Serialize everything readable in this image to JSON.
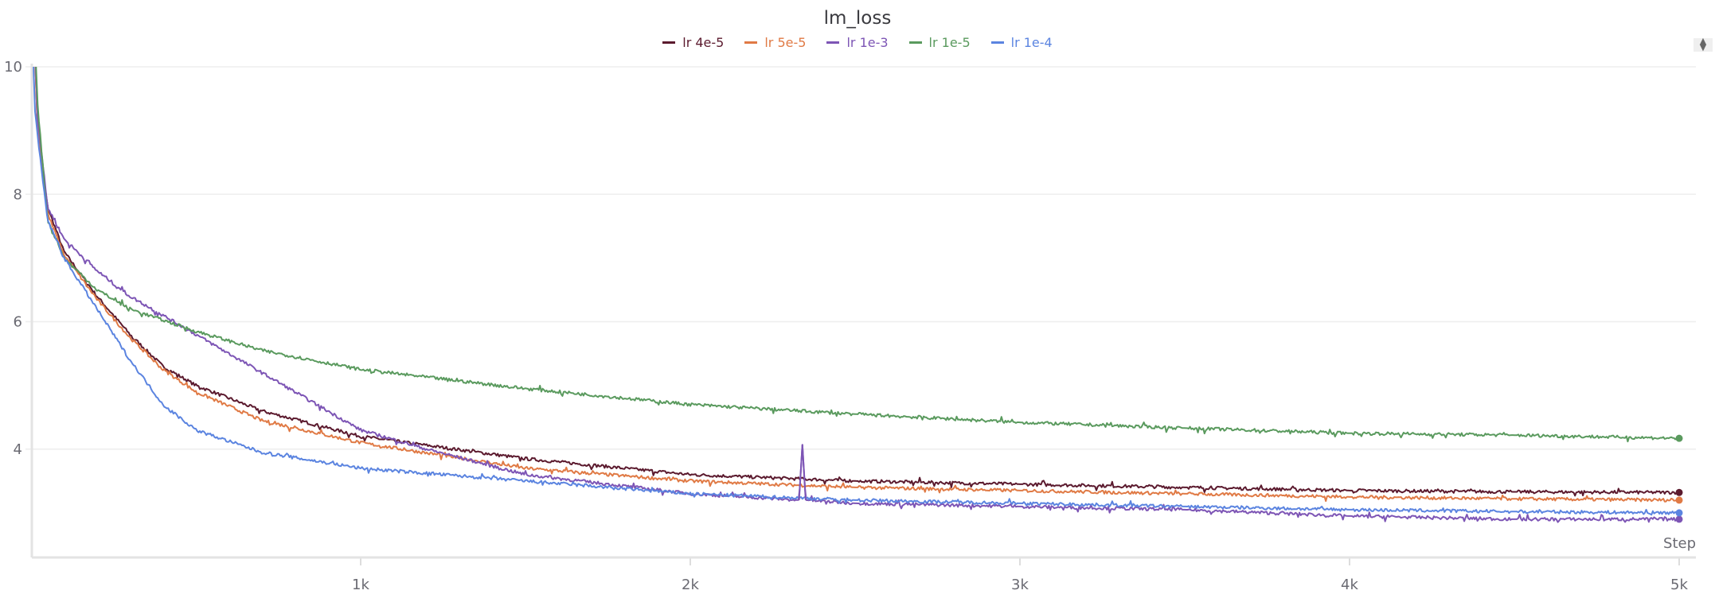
{
  "chart_data": {
    "type": "line",
    "title": "lm_loss",
    "xlabel": "Step",
    "ylabel": "",
    "xlim": [
      0,
      5000
    ],
    "ylim": [
      2.3,
      10
    ],
    "grid": true,
    "legend_placement": "top",
    "x_ticks": [
      {
        "value": 1000,
        "label": "1k"
      },
      {
        "value": 2000,
        "label": "2k"
      },
      {
        "value": 3000,
        "label": "3k"
      },
      {
        "value": 4000,
        "label": "4k"
      },
      {
        "value": 5000,
        "label": "5k"
      }
    ],
    "y_ticks": [
      {
        "value": 4,
        "label": "4"
      },
      {
        "value": 6,
        "label": "6"
      },
      {
        "value": 8,
        "label": "8"
      },
      {
        "value": 10,
        "label": "10"
      }
    ],
    "series": [
      {
        "name": "lr 4e-5",
        "color": "#5b1a2e",
        "points": [
          [
            0,
            12
          ],
          [
            20,
            9.0
          ],
          [
            50,
            7.8
          ],
          [
            100,
            7.1
          ],
          [
            200,
            6.4
          ],
          [
            300,
            5.8
          ],
          [
            400,
            5.3
          ],
          [
            500,
            5.0
          ],
          [
            700,
            4.6
          ],
          [
            1000,
            4.2
          ],
          [
            1500,
            3.85
          ],
          [
            2000,
            3.6
          ],
          [
            2500,
            3.5
          ],
          [
            3000,
            3.45
          ],
          [
            3500,
            3.4
          ],
          [
            4000,
            3.35
          ],
          [
            4500,
            3.33
          ],
          [
            5000,
            3.32
          ]
        ]
      },
      {
        "name": "lr 5e-5",
        "color": "#e07a45",
        "points": [
          [
            0,
            12
          ],
          [
            20,
            9.0
          ],
          [
            50,
            7.7
          ],
          [
            100,
            7.05
          ],
          [
            200,
            6.35
          ],
          [
            300,
            5.75
          ],
          [
            400,
            5.25
          ],
          [
            500,
            4.9
          ],
          [
            700,
            4.45
          ],
          [
            1000,
            4.1
          ],
          [
            1500,
            3.7
          ],
          [
            2000,
            3.5
          ],
          [
            2500,
            3.4
          ],
          [
            3000,
            3.35
          ],
          [
            3500,
            3.3
          ],
          [
            4000,
            3.25
          ],
          [
            4500,
            3.22
          ],
          [
            5000,
            3.2
          ]
        ]
      },
      {
        "name": "lr 1e-3",
        "color": "#7d55b5",
        "points": [
          [
            0,
            12
          ],
          [
            20,
            9.2
          ],
          [
            50,
            7.8
          ],
          [
            100,
            7.3
          ],
          [
            200,
            6.8
          ],
          [
            300,
            6.4
          ],
          [
            400,
            6.1
          ],
          [
            500,
            5.8
          ],
          [
            700,
            5.2
          ],
          [
            900,
            4.6
          ],
          [
            1000,
            4.3
          ],
          [
            1200,
            4.0
          ],
          [
            1500,
            3.6
          ],
          [
            2000,
            3.3
          ],
          [
            2330,
            3.2
          ],
          [
            2340,
            4.07
          ],
          [
            2350,
            3.2
          ],
          [
            2500,
            3.15
          ],
          [
            3000,
            3.1
          ],
          [
            3500,
            3.05
          ],
          [
            4000,
            2.95
          ],
          [
            4500,
            2.9
          ],
          [
            5000,
            2.9
          ]
        ]
      },
      {
        "name": "lr 1e-5",
        "color": "#5a9a5e",
        "points": [
          [
            0,
            12
          ],
          [
            20,
            9.4
          ],
          [
            50,
            7.6
          ],
          [
            100,
            7.0
          ],
          [
            200,
            6.5
          ],
          [
            300,
            6.2
          ],
          [
            500,
            5.85
          ],
          [
            700,
            5.55
          ],
          [
            1000,
            5.25
          ],
          [
            1500,
            4.95
          ],
          [
            2000,
            4.7
          ],
          [
            2500,
            4.55
          ],
          [
            3000,
            4.42
          ],
          [
            3500,
            4.33
          ],
          [
            4000,
            4.25
          ],
          [
            4500,
            4.22
          ],
          [
            5000,
            4.17
          ]
        ]
      },
      {
        "name": "lr 1e-4",
        "color": "#5b84e0",
        "points": [
          [
            0,
            12
          ],
          [
            10,
            9.4
          ],
          [
            20,
            8.9
          ],
          [
            50,
            7.6
          ],
          [
            100,
            7.0
          ],
          [
            200,
            6.2
          ],
          [
            300,
            5.4
          ],
          [
            400,
            4.7
          ],
          [
            500,
            4.3
          ],
          [
            700,
            3.95
          ],
          [
            1000,
            3.7
          ],
          [
            1500,
            3.5
          ],
          [
            2000,
            3.3
          ],
          [
            2500,
            3.2
          ],
          [
            3000,
            3.15
          ],
          [
            3500,
            3.1
          ],
          [
            4000,
            3.05
          ],
          [
            4500,
            3.02
          ],
          [
            5000,
            3.0
          ]
        ]
      }
    ]
  }
}
